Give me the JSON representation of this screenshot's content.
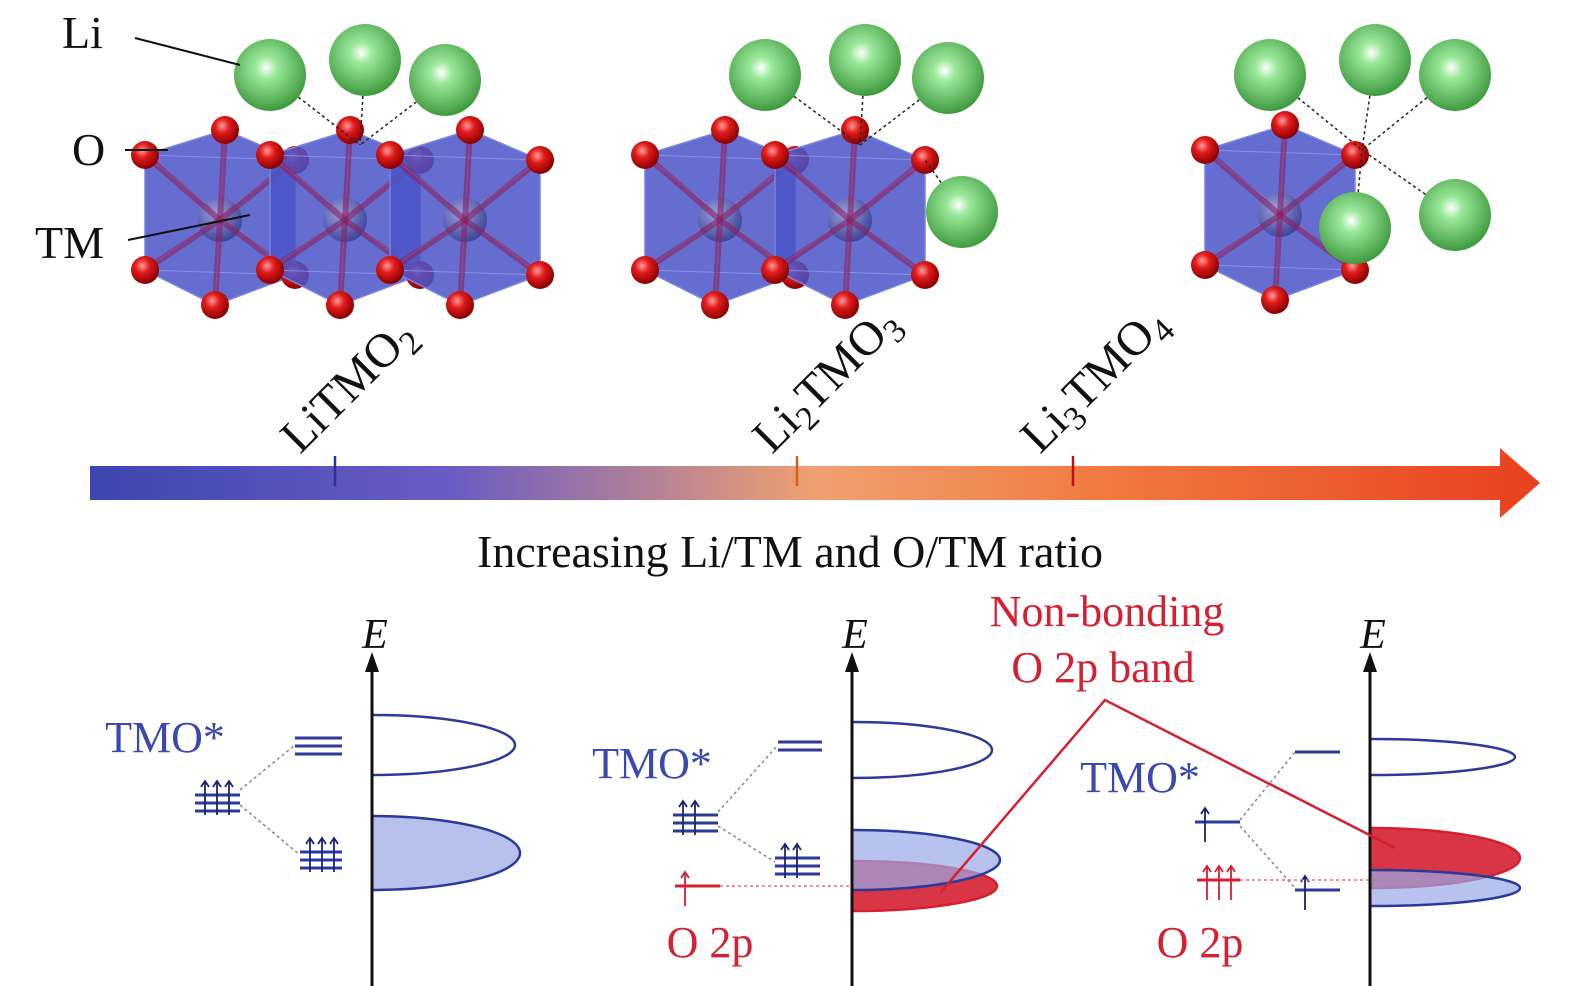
{
  "labels": {
    "li": "Li",
    "o": "O",
    "tm": "TM"
  },
  "formulas": [
    [
      "LiTMO",
      "2"
    ],
    [
      "Li",
      "2",
      "TMO",
      "3"
    ],
    [
      "Li",
      "3",
      "TMO",
      "4"
    ]
  ],
  "axis_caption": "Increasing Li/TM and O/TM ratio",
  "diagrams": [
    {
      "energy": "E",
      "tmo": "TMO*"
    },
    {
      "energy": "E",
      "tmo": "TMO*",
      "o2p": "O 2p"
    },
    {
      "energy": "E",
      "tmo": "TMO*",
      "o2p": "O 2p"
    }
  ],
  "callout": [
    "Non-bonding",
    "O 2p band"
  ]
}
